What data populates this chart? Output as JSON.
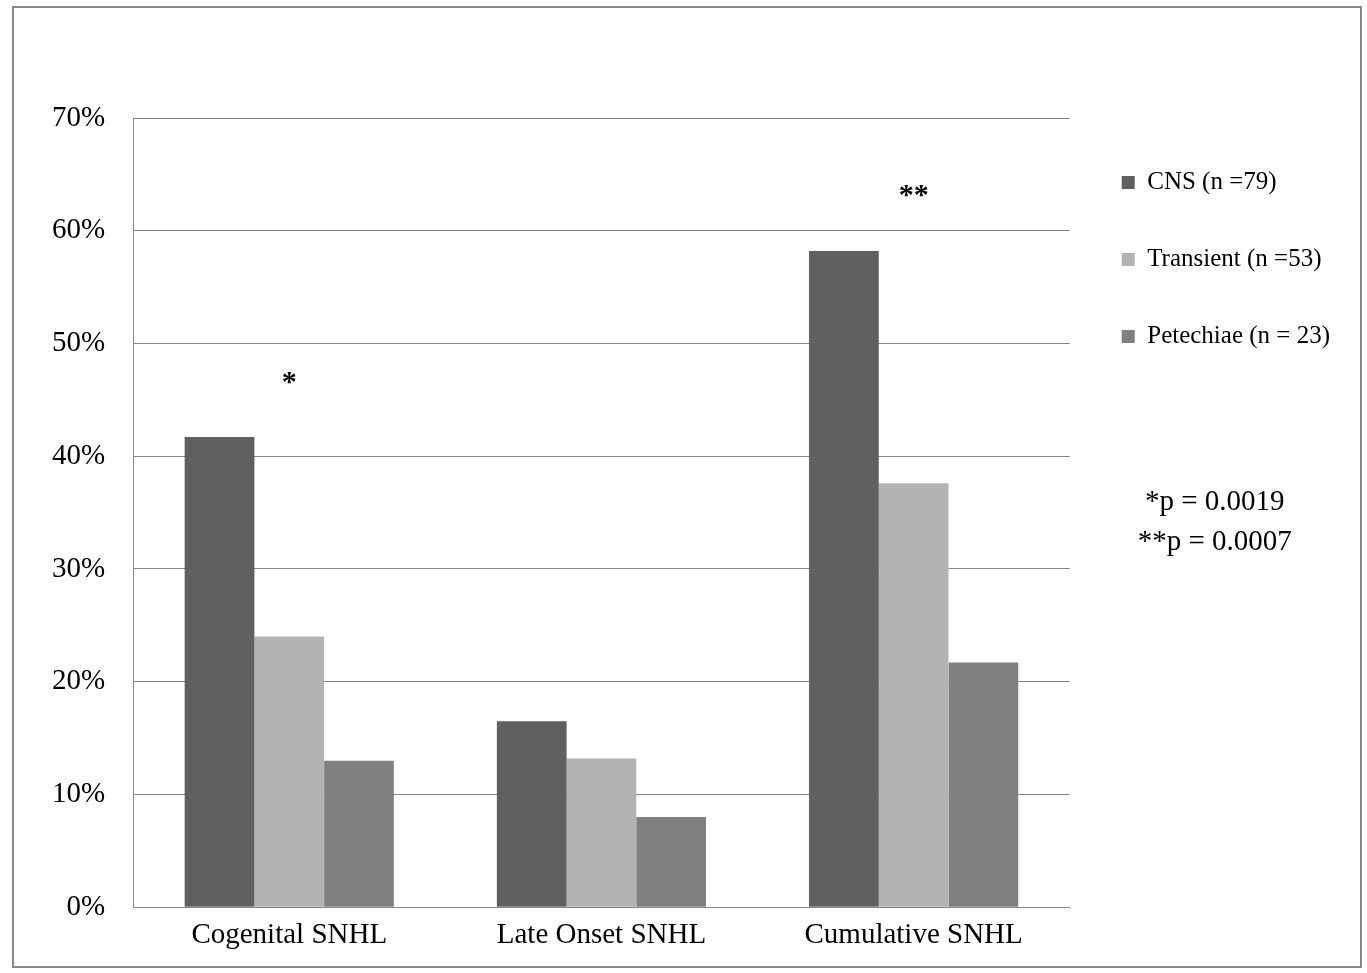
{
  "chart_data": {
    "type": "bar",
    "categories": [
      "Cogenital SNHL",
      "Late Onset SNHL",
      "Cumulative SNHL"
    ],
    "series": [
      {
        "name": "CNS (n =79)",
        "color": "#606060",
        "values": [
          41.7,
          16.5,
          58.2
        ]
      },
      {
        "name": "Transient (n =53)",
        "color": "#b3b3b3",
        "values": [
          24.0,
          13.2,
          37.6
        ]
      },
      {
        "name": "Petechiae (n = 23)",
        "color": "#808080",
        "values": [
          13.0,
          8.0,
          21.7
        ]
      }
    ],
    "ylim": [
      0,
      70
    ],
    "yticks": [
      {
        "value": 0,
        "label": "0%"
      },
      {
        "value": 10,
        "label": "10%"
      },
      {
        "value": 20,
        "label": "20%"
      },
      {
        "value": 30,
        "label": "30%"
      },
      {
        "value": 40,
        "label": "40%"
      },
      {
        "value": 50,
        "label": "50%"
      },
      {
        "value": 60,
        "label": "60%"
      },
      {
        "value": 70,
        "label": "70%"
      }
    ],
    "grid": "y",
    "legend": "right",
    "annotations": [
      "*",
      "**",
      "*p = 0.0019",
      "**p = 0.0007"
    ]
  }
}
